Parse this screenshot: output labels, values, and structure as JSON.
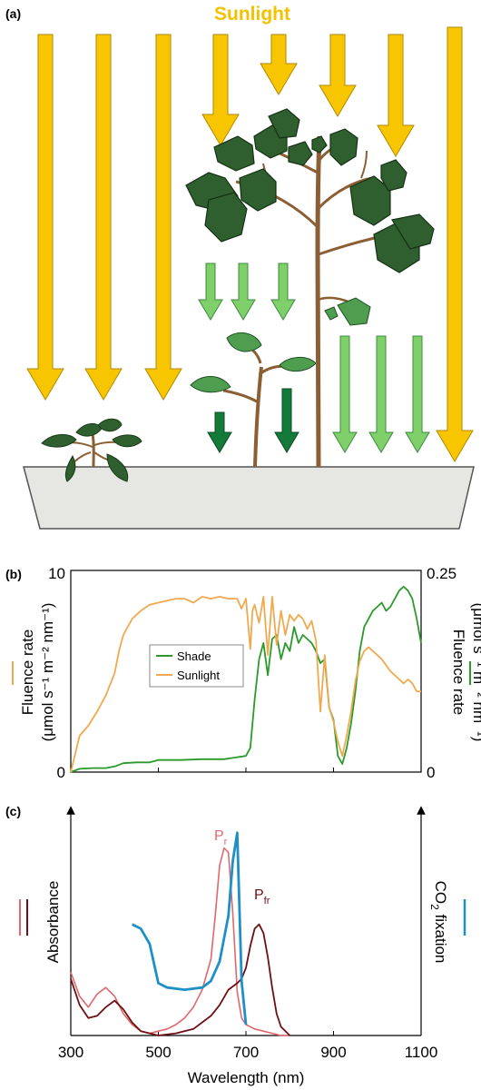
{
  "panels": {
    "a": {
      "label": "(a)",
      "title": "Sunlight",
      "colors": {
        "sunlight": "#f7c600",
        "filtered_light": "#7fd06b",
        "far_red_light": "#137a3a",
        "leaf": "#2f5f2e",
        "stem": "#8b5e34",
        "pot": "#e6e6e2"
      }
    },
    "b": {
      "label": "(b)",
      "left_axis_label_line1": "Fluence rate",
      "left_axis_label_line2": "(μmol s⁻¹ m⁻² nm⁻¹)",
      "right_axis_label_line1": "Fluence rate",
      "right_axis_label_line2": "(μmol s⁻¹ m⁻² nm⁻¹)",
      "left_ticks": [
        "10",
        "0"
      ],
      "right_ticks": [
        "0.25",
        "0"
      ],
      "legend": [
        "Shade",
        "Sunlight"
      ],
      "colors": {
        "shade": "#2b9a2b",
        "sunlight": "#f0a94e"
      }
    },
    "c": {
      "label": "(c)",
      "left_axis_label": "Absorbance",
      "right_axis_label_main": "CO",
      "right_axis_label_sub": "2",
      "right_axis_label_rest": " fixation",
      "x_axis_label": "Wavelength (nm)",
      "x_ticks": [
        "300",
        "500",
        "700",
        "900",
        "1100"
      ],
      "peak_pr_main": "P",
      "peak_pr_sub": "r",
      "peak_pfr_main": "P",
      "peak_pfr_sub": "fr",
      "colors": {
        "pr": "#e0676b",
        "pfr": "#6e0f14",
        "co2": "#1f8fc8"
      }
    }
  },
  "chart_data": [
    {
      "type": "line",
      "title": "",
      "xlabel": "",
      "ylabel": "Fluence rate (μmol s⁻¹ m⁻² nm⁻¹)",
      "xlim": [
        300,
        1100
      ],
      "ylim": [
        0,
        10
      ],
      "y2lim": [
        0,
        0.25
      ],
      "legend_position": "center-left",
      "grid": false,
      "series": [
        {
          "name": "Sunlight",
          "axis": "left",
          "x": [
            300,
            320,
            340,
            360,
            380,
            400,
            410,
            420,
            440,
            460,
            480,
            500,
            520,
            540,
            560,
            580,
            600,
            620,
            640,
            660,
            680,
            690,
            700,
            710,
            715,
            720,
            730,
            740,
            750,
            760,
            770,
            780,
            790,
            800,
            810,
            820,
            830,
            840,
            850,
            860,
            870,
            880,
            890,
            900,
            910,
            920,
            930,
            940,
            950,
            960,
            970,
            980,
            990,
            1000,
            1010,
            1020,
            1030,
            1040,
            1050,
            1060,
            1070,
            1080,
            1090,
            1100
          ],
          "values": [
            0,
            1.8,
            2.3,
            3.0,
            3.8,
            4.9,
            6.0,
            6.8,
            7.6,
            8.0,
            8.3,
            8.4,
            8.5,
            8.6,
            8.6,
            8.4,
            8.7,
            8.6,
            8.7,
            8.6,
            8.6,
            8.1,
            8.6,
            6.1,
            8.0,
            8.3,
            7.4,
            8.7,
            5.8,
            8.7,
            6.3,
            8.0,
            6.8,
            7.8,
            7.5,
            7.8,
            7.6,
            7.1,
            7.5,
            6.5,
            3.0,
            5.8,
            3.2,
            2.5,
            1.5,
            0.8,
            1.8,
            3.0,
            4.5,
            5.5,
            6.0,
            6.2,
            6.0,
            5.8,
            5.6,
            5.3,
            5.0,
            4.8,
            4.6,
            4.4,
            4.6,
            4.4,
            4.0,
            4.0
          ]
        },
        {
          "name": "Shade",
          "axis": "right",
          "x": [
            300,
            320,
            350,
            380,
            400,
            420,
            450,
            480,
            500,
            550,
            600,
            650,
            700,
            710,
            720,
            730,
            740,
            750,
            760,
            770,
            780,
            790,
            800,
            810,
            820,
            830,
            840,
            850,
            860,
            870,
            880,
            890,
            900,
            910,
            920,
            930,
            940,
            950,
            960,
            970,
            980,
            990,
            1000,
            1010,
            1020,
            1030,
            1040,
            1050,
            1060,
            1070,
            1080,
            1090,
            1100
          ],
          "values": [
            0,
            0.004,
            0.005,
            0.005,
            0.007,
            0.011,
            0.012,
            0.012,
            0.015,
            0.015,
            0.016,
            0.016,
            0.02,
            0.03,
            0.09,
            0.14,
            0.16,
            0.12,
            0.165,
            0.17,
            0.14,
            0.16,
            0.15,
            0.18,
            0.16,
            0.17,
            0.165,
            0.16,
            0.15,
            0.135,
            0.14,
            0.08,
            0.065,
            0.02,
            0.01,
            0.03,
            0.06,
            0.1,
            0.15,
            0.18,
            0.19,
            0.2,
            0.205,
            0.21,
            0.2,
            0.205,
            0.215,
            0.225,
            0.23,
            0.225,
            0.215,
            0.19,
            0.16
          ]
        }
      ]
    },
    {
      "type": "line",
      "title": "",
      "xlabel": "Wavelength (nm)",
      "ylabel": "Absorbance",
      "y2label": "CO2 fixation",
      "xlim": [
        300,
        1100
      ],
      "ylim": [
        0,
        1
      ],
      "grid": false,
      "series": [
        {
          "name": "Pr",
          "x": [
            300,
            320,
            340,
            360,
            380,
            400,
            420,
            440,
            460,
            480,
            500,
            520,
            540,
            560,
            580,
            600,
            620,
            630,
            640,
            650,
            660,
            670,
            680,
            690,
            700,
            720,
            740,
            760,
            780,
            800
          ],
          "values": [
            0.29,
            0.18,
            0.13,
            0.19,
            0.22,
            0.18,
            0.1,
            0.05,
            0.02,
            0.01,
            0.02,
            0.03,
            0.05,
            0.08,
            0.13,
            0.21,
            0.35,
            0.55,
            0.78,
            0.86,
            0.84,
            0.56,
            0.2,
            0.08,
            0.05,
            0.03,
            0.02,
            0.01,
            0.0,
            0.0
          ]
        },
        {
          "name": "Pfr",
          "x": [
            300,
            320,
            340,
            360,
            380,
            400,
            420,
            440,
            460,
            480,
            500,
            540,
            580,
            620,
            640,
            660,
            680,
            690,
            700,
            710,
            720,
            730,
            740,
            750,
            760,
            770,
            780,
            800
          ],
          "values": [
            0.26,
            0.14,
            0.08,
            0.09,
            0.13,
            0.16,
            0.12,
            0.06,
            0.02,
            0.01,
            0.0,
            0.01,
            0.03,
            0.09,
            0.14,
            0.21,
            0.24,
            0.26,
            0.31,
            0.41,
            0.49,
            0.51,
            0.47,
            0.36,
            0.22,
            0.1,
            0.04,
            0.0
          ]
        },
        {
          "name": "CO2 fixation",
          "axis": "right",
          "x": [
            440,
            460,
            480,
            500,
            520,
            560,
            600,
            620,
            640,
            660,
            670,
            680,
            690,
            700
          ],
          "values": [
            0.51,
            0.49,
            0.42,
            0.24,
            0.22,
            0.21,
            0.22,
            0.25,
            0.34,
            0.55,
            0.8,
            0.93,
            0.25,
            0.05
          ]
        }
      ]
    }
  ]
}
